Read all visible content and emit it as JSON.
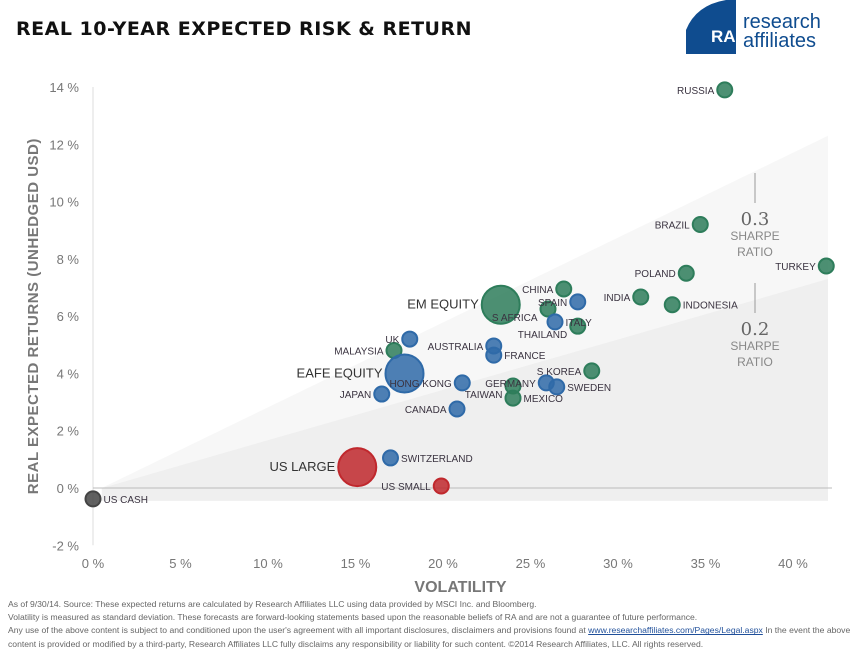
{
  "title": "REAL 10-YEAR EXPECTED RISK & RETURN",
  "logo": {
    "line1": "research",
    "line2": "affiliates",
    "mark": "RA",
    "color": "#0f4c8f"
  },
  "colors": {
    "developed": "#2f6aa8",
    "emerging": "#2e7d5b",
    "us": "#c0282d",
    "cash": "#444444",
    "band_high": "#f7f7f7",
    "band_low": "#efefef"
  },
  "chart_data": {
    "type": "scatter",
    "title": "REAL 10-YEAR EXPECTED RISK & RETURN",
    "xlabel": "VOLATILITY",
    "ylabel": "REAL EXPECTED RETURNS (UNHEDGED USD)",
    "xlim": [
      0,
      42
    ],
    "ylim": [
      -2,
      14
    ],
    "xticks": [
      "0 %",
      "5 %",
      "10 %",
      "15 %",
      "20 %",
      "25 %",
      "30 %",
      "35 %",
      "40 %"
    ],
    "yticks": [
      "-2 %",
      "0 %",
      "2 %",
      "4 %",
      "6 %",
      "8 %",
      "10 %",
      "12 %",
      "14 %"
    ],
    "grid": false,
    "sharpe_bands": [
      {
        "value": "0.3",
        "label1": "SHARPE",
        "label2": "RATIO",
        "end_return": 12.3
      },
      {
        "value": "0.2",
        "label1": "SHARPE",
        "label2": "RATIO",
        "end_return": 7.3
      }
    ],
    "points": [
      {
        "name": "RUSSIA",
        "x": 36.1,
        "y": 13.9,
        "group": "emerging",
        "size": "small"
      },
      {
        "name": "BRAZIL",
        "x": 34.7,
        "y": 9.2,
        "group": "emerging",
        "size": "small"
      },
      {
        "name": "TURKEY",
        "x": 41.9,
        "y": 7.75,
        "group": "emerging",
        "size": "small"
      },
      {
        "name": "POLAND",
        "x": 33.9,
        "y": 7.5,
        "group": "emerging",
        "size": "small"
      },
      {
        "name": "INDIA",
        "x": 31.3,
        "y": 6.67,
        "group": "emerging",
        "size": "small"
      },
      {
        "name": "INDONESIA",
        "x": 33.1,
        "y": 6.4,
        "group": "emerging",
        "size": "small"
      },
      {
        "name": "CHINA",
        "x": 26.9,
        "y": 6.95,
        "group": "emerging",
        "size": "small"
      },
      {
        "name": "SPAIN",
        "x": 27.7,
        "y": 6.5,
        "group": "developed",
        "size": "small"
      },
      {
        "name": "S AFRICA",
        "x": 26.0,
        "y": 6.25,
        "group": "emerging",
        "size": "small"
      },
      {
        "name": "EM EQUITY",
        "x": 23.3,
        "y": 6.4,
        "group": "emerging",
        "size": "large"
      },
      {
        "name": "ITALY",
        "x": 26.4,
        "y": 5.8,
        "group": "developed",
        "size": "small"
      },
      {
        "name": "THAILAND",
        "x": 27.7,
        "y": 5.65,
        "group": "emerging",
        "size": "small"
      },
      {
        "name": "UK",
        "x": 18.1,
        "y": 5.2,
        "group": "developed",
        "size": "small"
      },
      {
        "name": "MALAYSIA",
        "x": 17.2,
        "y": 4.8,
        "group": "emerging",
        "size": "small"
      },
      {
        "name": "AUSTRALIA",
        "x": 22.9,
        "y": 4.96,
        "group": "developed",
        "size": "small"
      },
      {
        "name": "FRANCE",
        "x": 22.9,
        "y": 4.64,
        "group": "developed",
        "size": "small"
      },
      {
        "name": "EAFE EQUITY",
        "x": 17.8,
        "y": 4.0,
        "group": "developed",
        "size": "large"
      },
      {
        "name": "HONG KONG",
        "x": 21.1,
        "y": 3.67,
        "group": "developed",
        "size": "small"
      },
      {
        "name": "JAPAN",
        "x": 16.5,
        "y": 3.28,
        "group": "developed",
        "size": "small"
      },
      {
        "name": "CANADA",
        "x": 20.8,
        "y": 2.76,
        "group": "developed",
        "size": "small"
      },
      {
        "name": "S KOREA",
        "x": 28.5,
        "y": 4.09,
        "group": "emerging",
        "size": "small"
      },
      {
        "name": "GERMANY",
        "x": 25.9,
        "y": 3.67,
        "group": "developed",
        "size": "small"
      },
      {
        "name": "SWEDEN",
        "x": 26.5,
        "y": 3.53,
        "group": "developed",
        "size": "small"
      },
      {
        "name": "TAIWAN",
        "x": 24.0,
        "y": 3.56,
        "group": "emerging",
        "size": "small"
      },
      {
        "name": "MEXICO",
        "x": 24.0,
        "y": 3.14,
        "group": "emerging",
        "size": "small"
      },
      {
        "name": "SWITZERLAND",
        "x": 17.0,
        "y": 1.05,
        "group": "developed",
        "size": "small"
      },
      {
        "name": "US LARGE",
        "x": 15.1,
        "y": 0.73,
        "group": "us",
        "size": "large"
      },
      {
        "name": "US SMALL",
        "x": 19.9,
        "y": 0.07,
        "group": "us",
        "size": "small"
      },
      {
        "name": "US CASH",
        "x": 0.0,
        "y": -0.38,
        "group": "cash",
        "size": "small"
      }
    ]
  },
  "footer": {
    "line1": "As of 9/30/14. Source: These expected returns are calculated by Research Affiliates LLC using data provided by MSCI Inc. and Bloomberg.",
    "line2": "Volatility is measured as standard deviation. These forecasts are forward-looking statements based upon the reasonable beliefs of RA and are not a guarantee of future performance.",
    "line3a": "Any use of the above content is subject to and conditioned upon the user's agreement with all important disclosures, disclaimers and provisions found at ",
    "link": "www.researchaffiliates.com/Pages/Legal.aspx",
    "line3b": " In the event the above content is provided or modified by a third-party, Research Affiliates LLC fully disclaims any responsibility or liability for such content.  ©2014 Research Affiliates, LLC.  All rights reserved."
  }
}
